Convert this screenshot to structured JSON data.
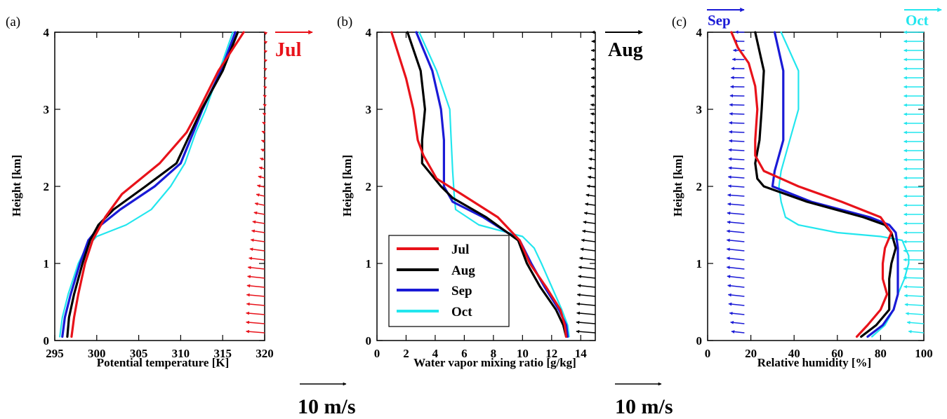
{
  "colors": {
    "Jul": "#e8121a",
    "Aug": "#000000",
    "Sep": "#1a1ad6",
    "Oct": "#22e6ee"
  },
  "months": [
    "Jul",
    "Aug",
    "Sep",
    "Oct"
  ],
  "scale_label": "10 m/s",
  "chart_data": [
    {
      "type": "line",
      "panel": "(a)",
      "xlabel": "Potential temperature [K]",
      "ylabel": "Height [km]",
      "xlim": [
        295,
        320
      ],
      "ylim": [
        0,
        4
      ],
      "xticks": [
        295,
        300,
        305,
        310,
        315,
        320
      ],
      "yticks": [
        0,
        1,
        2,
        3,
        4
      ],
      "series": [
        {
          "name": "Jul",
          "y": [
            0.05,
            0.3,
            0.6,
            1.0,
            1.3,
            1.6,
            1.9,
            2.3,
            2.7,
            3.0,
            3.5,
            4.0
          ],
          "x": [
            297.0,
            297.3,
            297.8,
            298.6,
            299.5,
            301.0,
            303.0,
            307.5,
            310.7,
            312.2,
            314.5,
            317.5
          ]
        },
        {
          "name": "Aug",
          "y": [
            0.05,
            0.3,
            0.6,
            1.0,
            1.3,
            1.5,
            1.7,
            2.0,
            2.3,
            2.7,
            3.0,
            3.5,
            4.0
          ],
          "x": [
            296.5,
            296.7,
            297.3,
            298.3,
            299.2,
            300.2,
            302.0,
            305.8,
            309.5,
            311.2,
            312.5,
            315.0,
            316.8
          ]
        },
        {
          "name": "Sep",
          "y": [
            0.05,
            0.3,
            0.6,
            1.0,
            1.3,
            1.5,
            1.7,
            2.0,
            2.3,
            2.7,
            3.0,
            3.5,
            4.0
          ],
          "x": [
            295.9,
            296.2,
            296.9,
            298.0,
            299.0,
            300.5,
            302.8,
            306.9,
            310.0,
            311.5,
            312.6,
            314.8,
            316.5
          ]
        },
        {
          "name": "Oct",
          "y": [
            0.05,
            0.3,
            0.6,
            1.0,
            1.2,
            1.35,
            1.5,
            1.7,
            2.0,
            2.3,
            2.7,
            3.0,
            3.5,
            4.0
          ],
          "x": [
            295.6,
            295.9,
            296.6,
            297.8,
            298.7,
            300.0,
            303.5,
            306.5,
            308.8,
            310.5,
            311.8,
            313.0,
            314.6,
            316.2
          ]
        }
      ],
      "wind_profile": {
        "name": "Jul",
        "y_range": [
          0.1,
          4.0
        ],
        "count": 34,
        "u": [
          -4.0,
          -4.0,
          -4.0,
          -3.9,
          -3.9,
          -3.8,
          -3.7,
          -3.6,
          -3.4,
          -3.2,
          -3.0,
          -2.8,
          -2.6,
          -2.3,
          -2.1,
          -1.8,
          -1.6,
          -1.4,
          -1.2,
          -1.0,
          -0.8,
          -0.7,
          -0.6,
          -0.5,
          -0.4,
          -0.3,
          -0.3,
          -0.2,
          -0.2,
          -0.2,
          -0.1,
          -0.1,
          -0.1,
          -0.1
        ],
        "v": [
          0.32,
          0.34,
          0.35,
          0.36,
          0.37,
          0.38,
          0.39,
          0.4,
          0.41,
          0.42,
          0.42,
          0.42,
          0.42,
          0.42,
          0.42,
          0.4,
          0.38,
          0.36,
          0.34,
          0.32,
          0.3,
          0.28,
          0.26,
          0.24,
          0.22,
          0.2,
          0.18,
          0.16,
          0.14,
          0.12,
          0.1,
          0.1,
          0.08,
          0.08
        ]
      }
    },
    {
      "type": "line",
      "panel": "(b)",
      "xlabel": "Water vapor mixing ratio [g/kg]",
      "ylabel": "Height [km]",
      "xlim": [
        0,
        15
      ],
      "ylim": [
        0,
        4
      ],
      "xticks": [
        0,
        2,
        4,
        6,
        8,
        10,
        12,
        14
      ],
      "yticks": [
        0,
        1,
        2,
        3,
        4
      ],
      "series": [
        {
          "name": "Jul",
          "y": [
            0.05,
            0.2,
            0.4,
            0.7,
            1.0,
            1.3,
            1.6,
            1.9,
            2.1,
            2.4,
            2.6,
            3.0,
            3.4,
            3.7,
            4.0
          ],
          "x": [
            13.0,
            12.9,
            12.6,
            11.6,
            10.5,
            9.8,
            8.3,
            5.8,
            4.1,
            3.2,
            2.8,
            2.5,
            2.0,
            1.5,
            1.0
          ]
        },
        {
          "name": "Aug",
          "y": [
            0.05,
            0.2,
            0.4,
            0.7,
            1.0,
            1.3,
            1.6,
            1.85,
            2.0,
            2.3,
            2.6,
            3.0,
            3.5,
            4.0
          ],
          "x": [
            13.0,
            12.8,
            12.3,
            11.2,
            10.3,
            9.7,
            7.5,
            5.2,
            4.4,
            3.1,
            3.1,
            3.3,
            3.0,
            2.1
          ]
        },
        {
          "name": "Sep",
          "y": [
            0.05,
            0.2,
            0.4,
            0.7,
            1.0,
            1.3,
            1.6,
            1.8,
            2.0,
            2.3,
            2.6,
            3.0,
            3.5,
            4.0
          ],
          "x": [
            13.1,
            13.0,
            12.5,
            11.5,
            10.6,
            9.8,
            7.3,
            5.2,
            4.6,
            4.6,
            4.6,
            4.4,
            3.8,
            2.7
          ]
        },
        {
          "name": "Oct",
          "y": [
            0.05,
            0.2,
            0.4,
            0.7,
            1.0,
            1.2,
            1.35,
            1.5,
            1.7,
            1.9,
            2.2,
            2.6,
            3.0,
            3.5,
            4.0
          ],
          "x": [
            13.2,
            13.1,
            12.7,
            12.0,
            11.3,
            10.8,
            10.0,
            7.0,
            5.4,
            5.3,
            5.2,
            5.1,
            5.0,
            4.1,
            2.9
          ]
        }
      ],
      "wind_profile": {
        "name": "Aug",
        "y_range": [
          0.1,
          4.0
        ],
        "count": 34,
        "u": [
          -4.1,
          -4.1,
          -4.0,
          -4.0,
          -3.9,
          -3.8,
          -3.7,
          -3.6,
          -3.4,
          -3.2,
          -3.0,
          -2.8,
          -2.6,
          -2.4,
          -2.2,
          -2.0,
          -1.8,
          -1.6,
          -1.5,
          -1.4,
          -1.3,
          -1.2,
          -1.1,
          -1.1,
          -1.0,
          -1.0,
          -1.0,
          -0.9,
          -0.9,
          -0.9,
          -0.9,
          -0.9,
          -0.8,
          -0.8
        ],
        "v": [
          0.32,
          0.34,
          0.36,
          0.38,
          0.4,
          0.41,
          0.42,
          0.42,
          0.42,
          0.42,
          0.4,
          0.38,
          0.36,
          0.34,
          0.32,
          0.3,
          0.28,
          0.26,
          0.24,
          0.22,
          0.2,
          0.18,
          0.16,
          0.14,
          0.12,
          0.1,
          0.08,
          0.06,
          0.04,
          0.02,
          0.0,
          0.0,
          0.0,
          0.0
        ]
      }
    },
    {
      "type": "line",
      "panel": "(c)",
      "xlabel": "Relative humidity [%]",
      "ylabel": "Height [km]",
      "xlim": [
        0,
        100
      ],
      "ylim": [
        0,
        4
      ],
      "xticks": [
        0,
        20,
        40,
        60,
        80,
        100
      ],
      "yticks": [
        0,
        1,
        2,
        3,
        4
      ],
      "series": [
        {
          "name": "Jul",
          "y": [
            0.05,
            0.2,
            0.4,
            0.6,
            0.8,
            1.0,
            1.2,
            1.4,
            1.6,
            1.8,
            2.0,
            2.2,
            2.4,
            2.6,
            3.0,
            3.3,
            3.6,
            3.8,
            4.0
          ],
          "x": [
            69,
            74,
            80,
            83,
            81,
            81,
            82,
            85,
            80,
            62,
            42,
            26,
            22,
            22,
            23,
            22,
            19,
            14,
            11
          ]
        },
        {
          "name": "Aug",
          "y": [
            0.05,
            0.2,
            0.4,
            0.6,
            0.8,
            1.0,
            1.2,
            1.4,
            1.5,
            1.6,
            1.8,
            2.0,
            2.1,
            2.3,
            2.6,
            3.0,
            3.5,
            4.0
          ],
          "x": [
            71,
            78,
            84,
            84,
            84,
            85,
            87,
            85,
            82,
            72,
            46,
            26,
            23,
            22,
            24,
            25,
            26,
            22
          ]
        },
        {
          "name": "Sep",
          "y": [
            0.05,
            0.2,
            0.4,
            0.6,
            0.8,
            1.0,
            1.2,
            1.4,
            1.5,
            1.6,
            1.8,
            2.0,
            2.2,
            2.6,
            3.0,
            3.5,
            4.0
          ],
          "x": [
            74,
            81,
            86,
            88,
            88,
            88,
            88,
            87,
            84,
            75,
            48,
            30,
            31,
            35,
            35,
            35,
            31
          ]
        },
        {
          "name": "Oct",
          "y": [
            0.05,
            0.2,
            0.4,
            0.6,
            0.8,
            1.0,
            1.1,
            1.3,
            1.35,
            1.4,
            1.5,
            1.6,
            1.8,
            2.0,
            2.2,
            2.6,
            3.0,
            3.5,
            4.0
          ],
          "x": [
            76,
            82,
            86,
            88,
            91,
            93,
            93,
            90,
            80,
            60,
            42,
            36,
            34,
            33,
            34,
            38,
            42,
            42,
            34
          ]
        }
      ],
      "wind_profiles": [
        {
          "name": "Sep",
          "y_range": [
            0.1,
            4.0
          ],
          "count": 34,
          "u": [
            -2.8,
            -3.0,
            -3.2,
            -3.4,
            -3.5,
            -3.6,
            -3.7,
            -3.8,
            -3.8,
            -3.8,
            -3.8,
            -3.8,
            -3.7,
            -3.7,
            -3.6,
            -3.6,
            -3.5,
            -3.5,
            -3.4,
            -3.4,
            -3.4,
            -3.3,
            -3.3,
            -3.3,
            -3.2,
            -3.2,
            -3.1,
            -3.0,
            -2.9,
            -2.8,
            -2.6,
            -2.4,
            -2.2,
            -2.0
          ],
          "v": [
            0.3,
            0.32,
            0.34,
            0.36,
            0.38,
            0.4,
            0.42,
            0.42,
            0.42,
            0.4,
            0.38,
            0.36,
            0.34,
            0.32,
            0.3,
            0.28,
            0.26,
            0.24,
            0.22,
            0.2,
            0.18,
            0.16,
            0.14,
            0.12,
            0.1,
            0.08,
            0.06,
            0.05,
            0.04,
            0.04,
            0.04,
            0.04,
            0.04,
            0.04
          ]
        },
        {
          "name": "Oct",
          "y_range": [
            0.1,
            4.0
          ],
          "count": 34,
          "u": [
            -3.3,
            -3.6,
            -3.9,
            -4.1,
            -4.2,
            -4.3,
            -4.4,
            -4.4,
            -4.4,
            -4.4,
            -4.4,
            -4.3,
            -4.3,
            -4.3,
            -4.3,
            -4.3,
            -4.3,
            -4.3,
            -4.3,
            -4.3,
            -4.3,
            -4.3,
            -4.3,
            -4.3,
            -4.3,
            -4.3,
            -4.3,
            -4.3,
            -4.3,
            -4.3,
            -4.3,
            -4.3,
            -4.3,
            -4.3
          ],
          "v": [
            0.32,
            0.3,
            0.26,
            0.22,
            0.18,
            0.14,
            0.1,
            0.06,
            0.04,
            0.02,
            0.0,
            0.0,
            0.0,
            0.0,
            0.0,
            0.0,
            0.0,
            0.0,
            0.0,
            0.0,
            0.0,
            0.0,
            0.0,
            0.0,
            0.0,
            0.0,
            0.0,
            0.0,
            0.0,
            0.0,
            0.0,
            0.0,
            0.0,
            0.0
          ]
        }
      ]
    }
  ]
}
